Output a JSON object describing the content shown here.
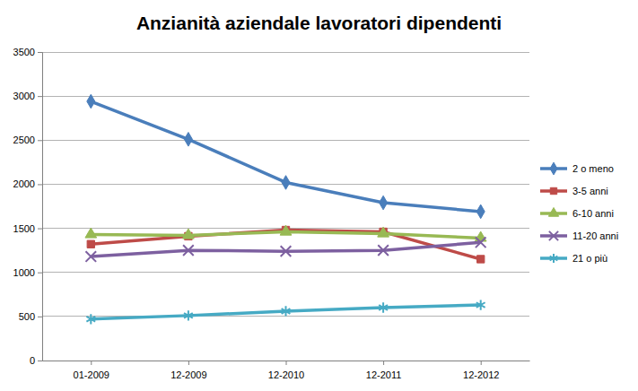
{
  "chart_data": {
    "type": "line",
    "title": "Anzianità aziendale lavoratori dipendenti",
    "categories": [
      "01-2009",
      "12-2009",
      "12-2010",
      "12-2011",
      "12-2012"
    ],
    "series": [
      {
        "name": "2 o meno",
        "color": "#4a7ebb",
        "marker": "diamond",
        "values": [
          2940,
          2510,
          2020,
          1790,
          1690
        ]
      },
      {
        "name": "3-5 anni",
        "color": "#be4b48",
        "marker": "square",
        "values": [
          1320,
          1410,
          1480,
          1460,
          1150
        ]
      },
      {
        "name": "6-10 anni",
        "color": "#98b954",
        "marker": "triangle",
        "values": [
          1430,
          1420,
          1460,
          1440,
          1390
        ]
      },
      {
        "name": "11-20 anni",
        "color": "#7d60a0",
        "marker": "x",
        "values": [
          1180,
          1250,
          1240,
          1250,
          1340
        ]
      },
      {
        "name": "21 o più",
        "color": "#46aac4",
        "marker": "asterisk",
        "values": [
          470,
          510,
          560,
          600,
          630
        ]
      }
    ],
    "ylim": [
      0,
      3500
    ],
    "yticks": [
      0,
      500,
      1000,
      1500,
      2000,
      2500,
      3000,
      3500
    ],
    "grid": true,
    "legend": "right"
  }
}
